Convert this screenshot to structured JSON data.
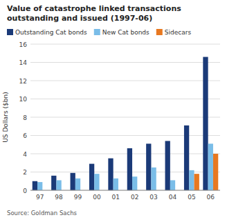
{
  "chart_data": {
    "type": "bar",
    "title": "Value of catastrophe linked transactions\noutstanding and issued (1997-06)",
    "ylabel": "US Dollars ($bn)",
    "source": "Source: Goldman Sachs",
    "categories": [
      "97",
      "98",
      "99",
      "00",
      "01",
      "02",
      "03",
      "04",
      "05",
      "06"
    ],
    "series": [
      {
        "name": "Outstanding Cat bonds",
        "color": "#1b3a78",
        "values": [
          1.0,
          1.6,
          1.9,
          2.9,
          3.5,
          4.6,
          5.1,
          5.4,
          7.1,
          14.6
        ]
      },
      {
        "name": "New Cat bonds",
        "color": "#7abde8",
        "values": [
          0.9,
          1.1,
          1.3,
          1.8,
          1.3,
          1.5,
          2.5,
          1.1,
          2.2,
          5.1
        ]
      },
      {
        "name": "Sidecars",
        "color": "#e87820",
        "values": [
          0.0,
          0.0,
          0.0,
          0.0,
          0.0,
          0.0,
          0.0,
          0.0,
          1.8,
          4.0
        ]
      }
    ],
    "ylim": [
      0,
      16
    ],
    "yticks": [
      0,
      2,
      4,
      6,
      8,
      10,
      12,
      14,
      16
    ],
    "grid": true,
    "legend": "top"
  }
}
